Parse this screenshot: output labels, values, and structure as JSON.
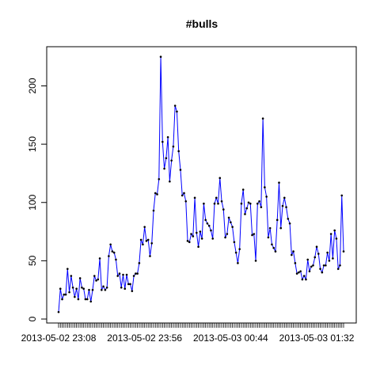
{
  "chart_data": {
    "type": "line",
    "title": "#bulls",
    "xlabel": "",
    "ylabel": "",
    "ylim": [
      0,
      230
    ],
    "y_ticks": [
      0,
      50,
      100,
      150,
      200
    ],
    "x_tick_labels": [
      {
        "index": 0,
        "label": "2013-05-02 23:08"
      },
      {
        "index": 48,
        "label": "2013-05-02 23:56"
      },
      {
        "index": 96,
        "label": "2013-05-03 00:44"
      },
      {
        "index": 144,
        "label": "2013-05-03 01:32"
      }
    ],
    "grid": false,
    "line_color": "#0000ff",
    "point_color": "#000000",
    "values": [
      6,
      26,
      17,
      21,
      21,
      43,
      23,
      37,
      27,
      19,
      26,
      17,
      35,
      27,
      26,
      17,
      17,
      25,
      15,
      25,
      37,
      33,
      34,
      52,
      25,
      28,
      25,
      27,
      54,
      64,
      58,
      57,
      51,
      37,
      39,
      27,
      38,
      26,
      38,
      30,
      30,
      24,
      37,
      39,
      39,
      48,
      68,
      64,
      79,
      67,
      68,
      54,
      65,
      93,
      108,
      107,
      120,
      225,
      152,
      129,
      138,
      156,
      118,
      136,
      148,
      183,
      178,
      144,
      128,
      106,
      108,
      101,
      67,
      66,
      73,
      71,
      104,
      74,
      62,
      75,
      69,
      99,
      85,
      82,
      80,
      76,
      69,
      99,
      104,
      99,
      121,
      101,
      94,
      70,
      73,
      87,
      83,
      79,
      66,
      57,
      48,
      60,
      99,
      111,
      90,
      95,
      100,
      99,
      72,
      73,
      50,
      99,
      101,
      96,
      172,
      113,
      105,
      70,
      78,
      64,
      61,
      58,
      85,
      117,
      78,
      97,
      104,
      96,
      86,
      82,
      55,
      58,
      48,
      39,
      40,
      41,
      34,
      37,
      34,
      51,
      41,
      45,
      46,
      53,
      62,
      56,
      43,
      40,
      46,
      46,
      57,
      50,
      73,
      52,
      76,
      69,
      43,
      46,
      106,
      58
    ]
  }
}
